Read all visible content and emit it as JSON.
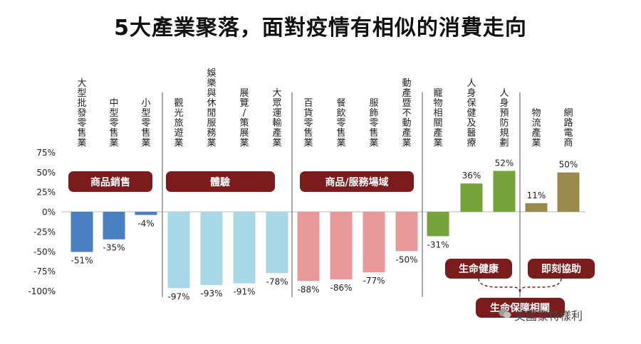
{
  "chart_data": {
    "type": "bar",
    "title": "5大產業聚落，面對疫情有相似的消費走向",
    "ylim": [
      -100,
      75
    ],
    "y_ticks": [
      "75%",
      "50%",
      "25%",
      "0%",
      "-25%",
      "-50%",
      "-75%",
      "-100%"
    ],
    "categories": [
      "大型批發零售業",
      "中型零售業",
      "小型零售業",
      "觀光旅遊業",
      "娛樂與休閒服務業",
      "展覽/策展業",
      "大眾運輸產業",
      "百貨零售業",
      "餐飲零售業",
      "服飾零售業",
      "動產暨不動產業",
      "寵物相關產業",
      "人身保健及醫療",
      "人身預防規劃",
      "物流產業",
      "網路電商"
    ],
    "values": [
      -51,
      -35,
      -4,
      -97,
      -93,
      -91,
      -78,
      -88,
      -86,
      -77,
      -50,
      -31,
      36,
      52,
      11,
      50
    ],
    "value_labels": [
      "-51%",
      "-35%",
      "-4%",
      "-97%",
      "-93%",
      "-91%",
      "-78%",
      "-88%",
      "-86%",
      "-77%",
      "-50%",
      "-31%",
      "36%",
      "52%",
      "11%",
      "50%"
    ],
    "group_labels": [
      "商品銷售",
      "體驗",
      "商品/服務場域"
    ],
    "bottom_labels": [
      "生命健康",
      "即刻協助",
      "生命保障相關"
    ],
    "colors": {
      "blue": "#4a7fc1",
      "light_blue": "#a8d8e8",
      "pink": "#e8999a",
      "green": "#76a33c",
      "olive": "#998b4e",
      "pill": "#7b1c1c"
    },
    "bar_colors": [
      "blue",
      "blue",
      "blue",
      "light_blue",
      "light_blue",
      "light_blue",
      "light_blue",
      "pink",
      "pink",
      "pink",
      "pink",
      "green",
      "green",
      "green",
      "olive",
      "olive"
    ]
  },
  "watermark": "美國豪特樣利"
}
